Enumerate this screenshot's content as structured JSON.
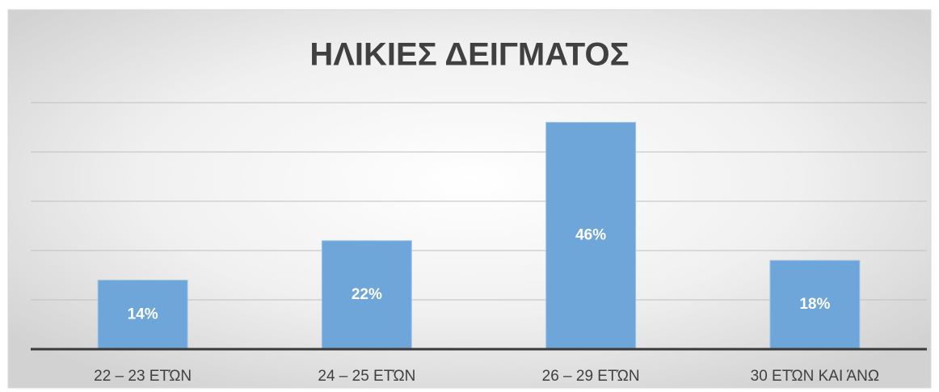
{
  "chart_data": {
    "type": "bar",
    "title": "ΗΛΙΚΙΕΣ ΔΕΙΓΜΑΤΟΣ",
    "categories": [
      "22 – 23 ΕΤΏΝ",
      "24 – 25 ΕΤΏΝ",
      "26 – 29 ΕΤΏΝ",
      "30 ΕΤΏΝ ΚΑΙ ΆΝΩ"
    ],
    "values": [
      14,
      22,
      46,
      18
    ],
    "value_labels": [
      "14%",
      "22%",
      "46%",
      "18%"
    ],
    "color": "#6fa6da",
    "ylim": [
      0,
      50
    ],
    "yticks": [
      0,
      10,
      20,
      30,
      40,
      50
    ],
    "grid": true
  }
}
